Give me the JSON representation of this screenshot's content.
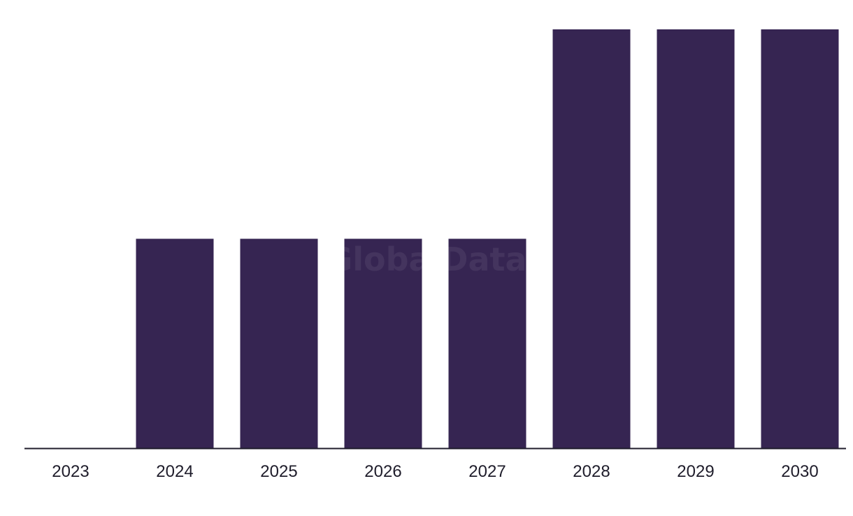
{
  "watermark": "GlobalData",
  "colors": {
    "bar": "#362552",
    "axis": "#1f1d2b",
    "label": "#1f1d2b"
  },
  "chart_data": {
    "type": "bar",
    "categories": [
      "2023",
      "2024",
      "2025",
      "2026",
      "2027",
      "2028",
      "2029",
      "2030"
    ],
    "values": [
      0,
      1,
      1,
      1,
      1,
      2,
      2,
      2
    ],
    "title": "",
    "xlabel": "",
    "ylabel": "",
    "ylim": [
      0,
      2
    ],
    "grid": false,
    "legend": "none"
  }
}
